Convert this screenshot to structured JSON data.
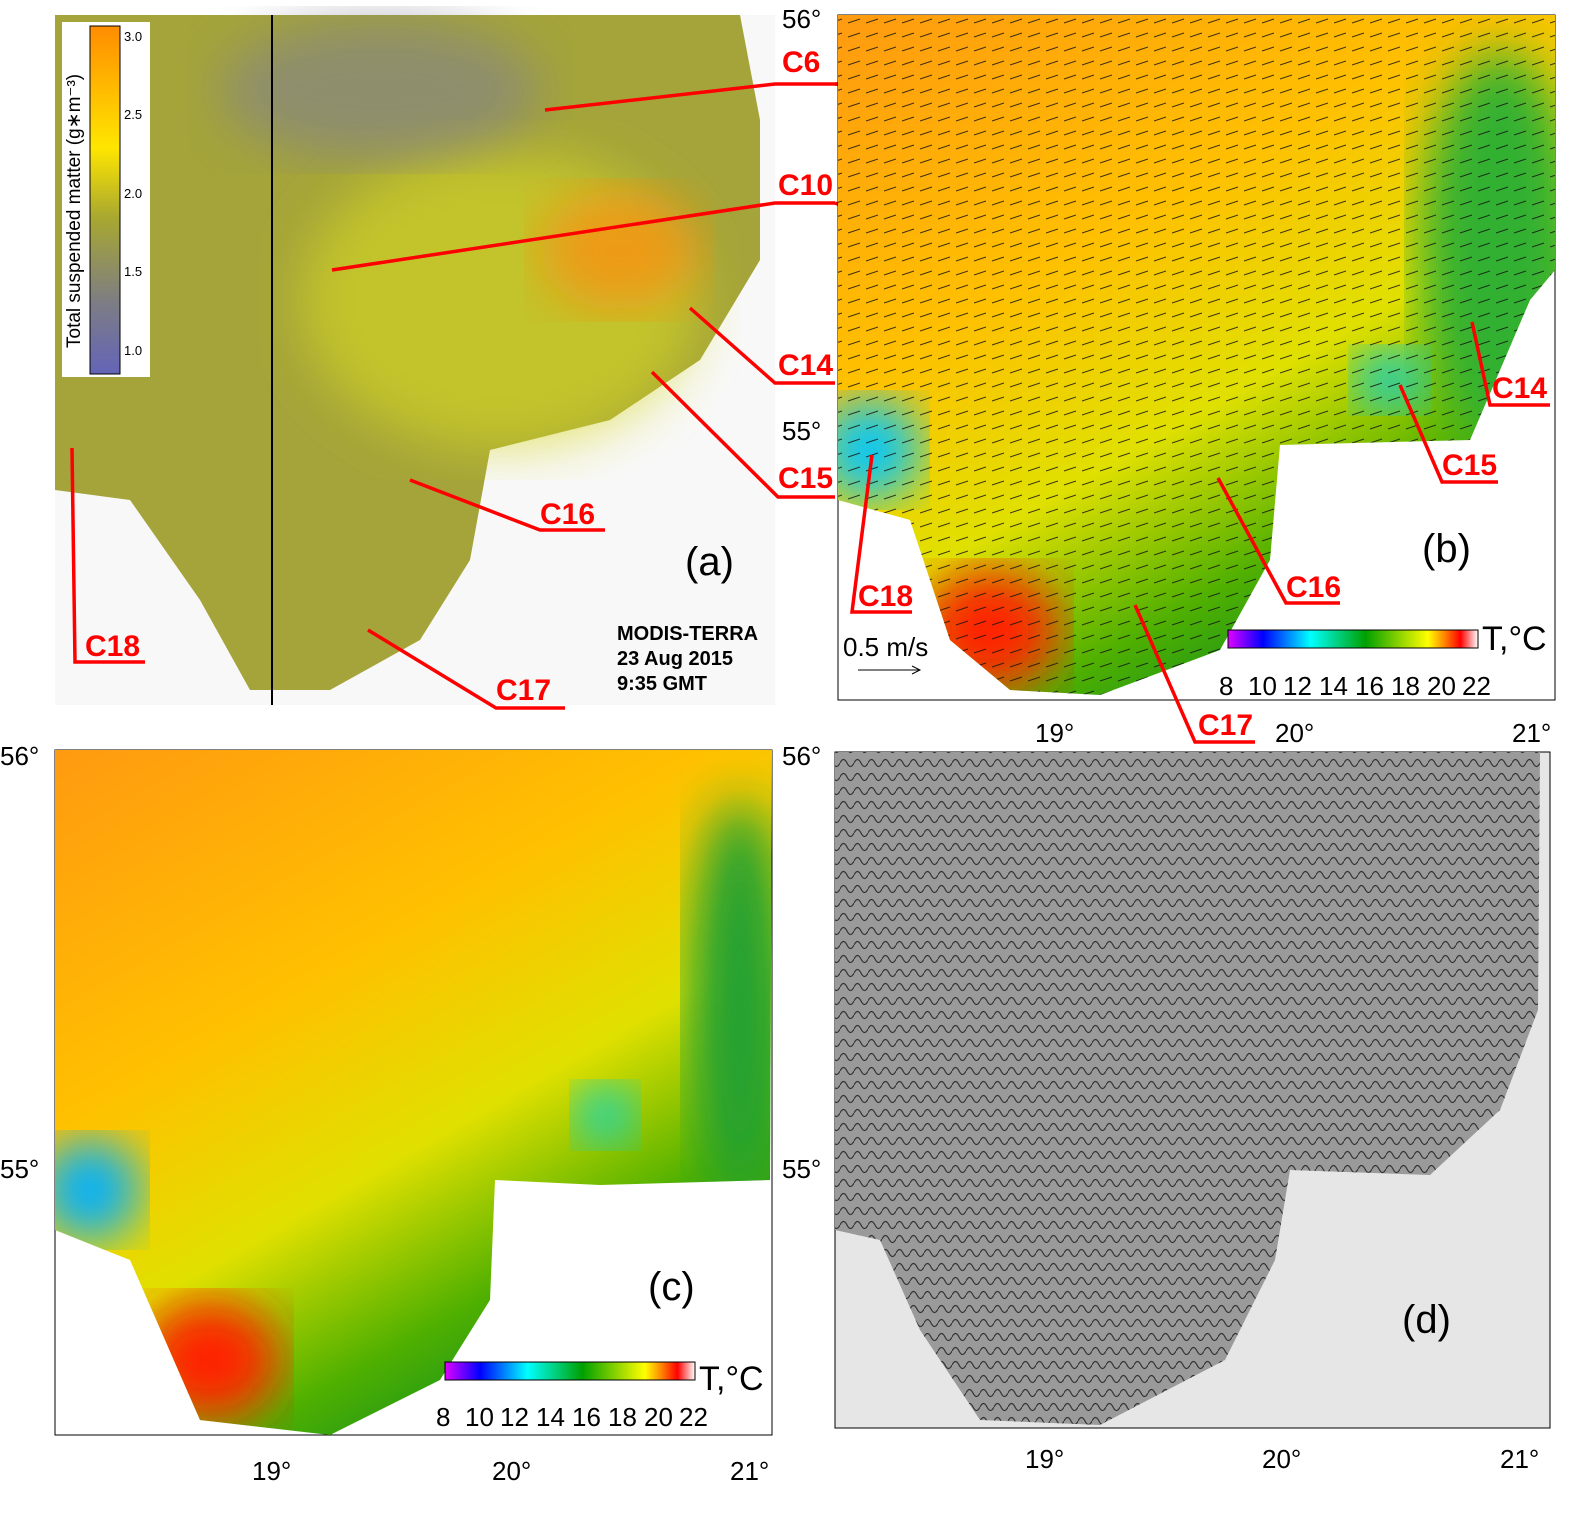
{
  "panels": {
    "a": {
      "label": "(a)",
      "satellite": "MODIS-TERRA",
      "date": "23 Aug 2015",
      "time": "9:35 GMT",
      "colorbar": {
        "title": "Total suspended matter (g∗m⁻³)",
        "ticks": [
          "3.0",
          "2.5",
          "2.0",
          "1.5",
          "1.0"
        ],
        "range": [
          0.85,
          3.1
        ],
        "colors": [
          "#6a6ab8",
          "#808080",
          "#a8a830",
          "#f5e800",
          "#ff9000"
        ]
      },
      "eddies": [
        "C6",
        "C10",
        "C14",
        "C15",
        "C16",
        "C17",
        "C18"
      ]
    },
    "b": {
      "label": "(b)",
      "scale_label": "0.5 m/s",
      "eddies": [
        "C14",
        "C15",
        "C16",
        "C17",
        "C18"
      ]
    },
    "c": {
      "label": "(c)"
    },
    "d": {
      "label": "(d)"
    }
  },
  "temperature_colorbar": {
    "title": "T,°C",
    "ticks": [
      "8",
      "10",
      "12",
      "14",
      "16",
      "18",
      "20",
      "22"
    ],
    "range": [
      8,
      22
    ]
  },
  "axes": {
    "lat": [
      "56°",
      "55°"
    ],
    "lon": [
      "19°",
      "20°",
      "21°"
    ]
  },
  "colors": {
    "label_red": "#ff0000",
    "land_gray": "#e6e6e6"
  }
}
